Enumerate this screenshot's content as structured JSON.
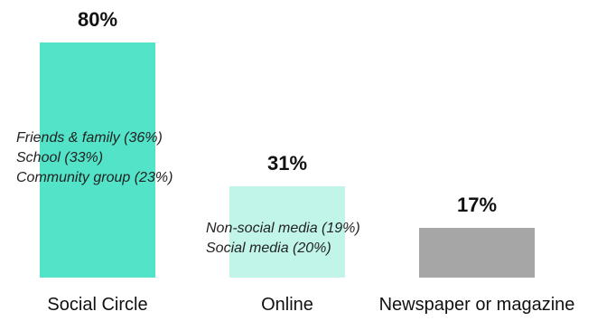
{
  "chart_data": {
    "type": "bar",
    "categories": [
      "Social Circle",
      "Online",
      "Newspaper or magazine"
    ],
    "values": [
      80,
      31,
      17
    ],
    "value_labels": [
      "80%",
      "31%",
      "17%"
    ],
    "colors": [
      "#52e3c8",
      "#c2f5ea",
      "#a6a6a6"
    ],
    "breakdowns": [
      [
        "Friends & family (36%)",
        "School (33%)",
        "Community group (23%)"
      ],
      [
        "Non-social media (19%)",
        "Social media (20%)"
      ],
      []
    ],
    "title": "",
    "xlabel": "",
    "ylabel": "",
    "ylim": [
      0,
      80
    ],
    "grid": false
  }
}
